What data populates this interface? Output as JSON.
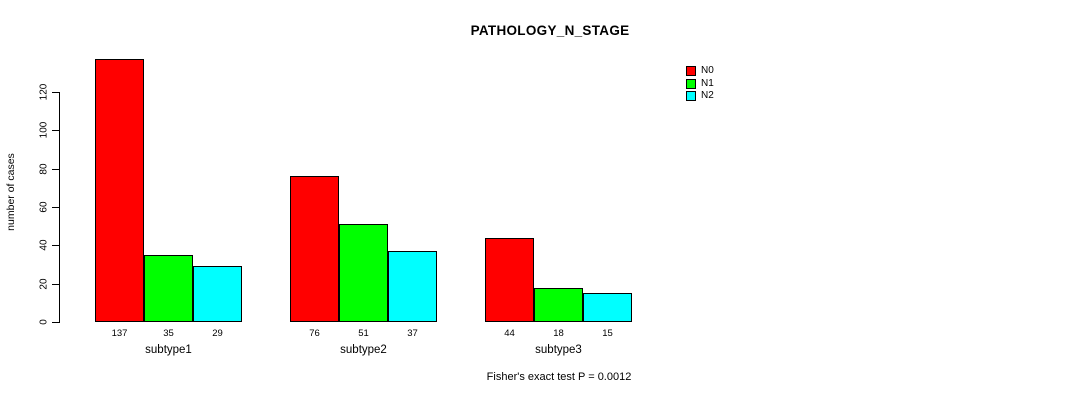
{
  "chart_data": {
    "type": "bar",
    "title": "PATHOLOGY_N_STAGE",
    "ylabel": "number of cases",
    "xlabel": "",
    "categories": [
      "subtype1",
      "subtype2",
      "subtype3"
    ],
    "series": [
      {
        "name": "N0",
        "color": "#ff0000",
        "values": [
          137,
          76,
          44
        ]
      },
      {
        "name": "N1",
        "color": "#00ff00",
        "values": [
          35,
          51,
          18
        ]
      },
      {
        "name": "N2",
        "color": "#00ffff",
        "values": [
          29,
          37,
          15
        ]
      }
    ],
    "yticks": [
      0,
      20,
      40,
      60,
      80,
      100,
      120
    ],
    "ylim": [
      0,
      137
    ],
    "grid": false,
    "bar_value_labels": true,
    "legend_position": "top-right",
    "annotation": "Fisher's exact test P = 0.0012"
  }
}
